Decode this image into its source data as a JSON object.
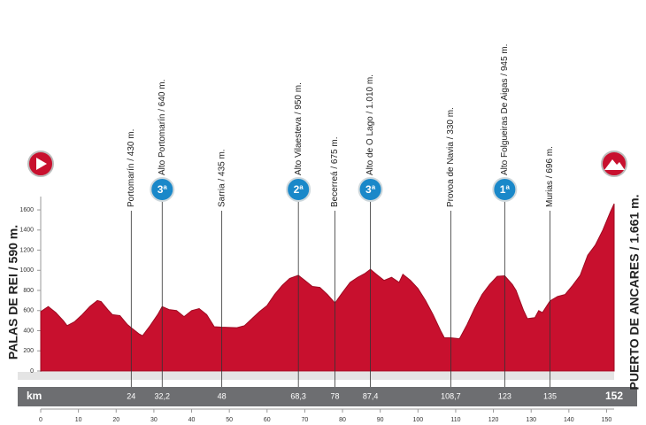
{
  "chart_data": {
    "type": "area",
    "color": "#c8102e",
    "start": "PALAS DE REI / 590 m.",
    "finish": "PUERTO DE ANCARES / 1.661 m.",
    "km_label": "km",
    "x": [
      0,
      2,
      4,
      6,
      7,
      9,
      11,
      13,
      15,
      16,
      18,
      19,
      21,
      23,
      24,
      26,
      27,
      29,
      31,
      32.2,
      34,
      36,
      38,
      40,
      42,
      44,
      46,
      48,
      52,
      54,
      56,
      58,
      60,
      62,
      64,
      66,
      68.3,
      70,
      72,
      74,
      76,
      78,
      80,
      82,
      84,
      86,
      87.4,
      89,
      91,
      93,
      95,
      96,
      98,
      100,
      102,
      104,
      106,
      107,
      108.7,
      111,
      113,
      115,
      117,
      119,
      121,
      123,
      125,
      126,
      128,
      129,
      131,
      132,
      133,
      135,
      137,
      139,
      141,
      143,
      145,
      147,
      149,
      151,
      152
    ],
    "values": [
      590,
      640,
      580,
      500,
      450,
      490,
      560,
      640,
      700,
      690,
      600,
      560,
      550,
      460,
      430,
      370,
      350,
      450,
      560,
      640,
      610,
      600,
      540,
      600,
      620,
      560,
      440,
      435,
      430,
      450,
      520,
      590,
      650,
      760,
      850,
      920,
      950,
      900,
      840,
      830,
      760,
      675,
      780,
      880,
      930,
      970,
      1010,
      960,
      900,
      930,
      880,
      960,
      900,
      820,
      700,
      560,
      400,
      330,
      330,
      320,
      460,
      620,
      760,
      860,
      940,
      945,
      860,
      800,
      600,
      520,
      530,
      600,
      580,
      696,
      740,
      760,
      850,
      950,
      1150,
      1250,
      1400,
      1580,
      1661
    ],
    "xlim": [
      0,
      152
    ],
    "ylim": [
      0,
      1750
    ],
    "xticks": [
      0,
      10,
      20,
      30,
      40,
      50,
      60,
      70,
      80,
      90,
      100,
      110,
      120,
      130,
      140,
      150
    ],
    "yticks": [
      0,
      200,
      400,
      600,
      800,
      1000,
      1200,
      1400,
      1600
    ],
    "waypoints": [
      {
        "km": 24,
        "label": "Portomarín / 430 m."
      },
      {
        "km": {
          "value": 32.2,
          "label": "32,2"
        },
        "label": "Alto Portomarín / 640 m.",
        "category": "3ª"
      },
      {
        "km": 48,
        "label": "Sarria / 435 m."
      },
      {
        "km": {
          "value": 68.3,
          "label": "68,3"
        },
        "label": "Alto Vilaesteva / 950 m.",
        "category": "2ª"
      },
      {
        "km": 78,
        "label": "Becerreá / 675 m."
      },
      {
        "km": {
          "value": 87.4,
          "label": "87,4"
        },
        "label": "Alto de O Lago / 1.010 m.",
        "category": "3ª"
      },
      {
        "km": {
          "value": 108.7,
          "label": "108,7"
        },
        "label": "Provoa de Navia / 330 m."
      },
      {
        "km": 123,
        "label": "Alto Folgueiras De Aigas / 945 m.",
        "category": "1ª"
      },
      {
        "km": 135,
        "label": "Murias / 696 m."
      },
      {
        "km": 152
      }
    ]
  }
}
